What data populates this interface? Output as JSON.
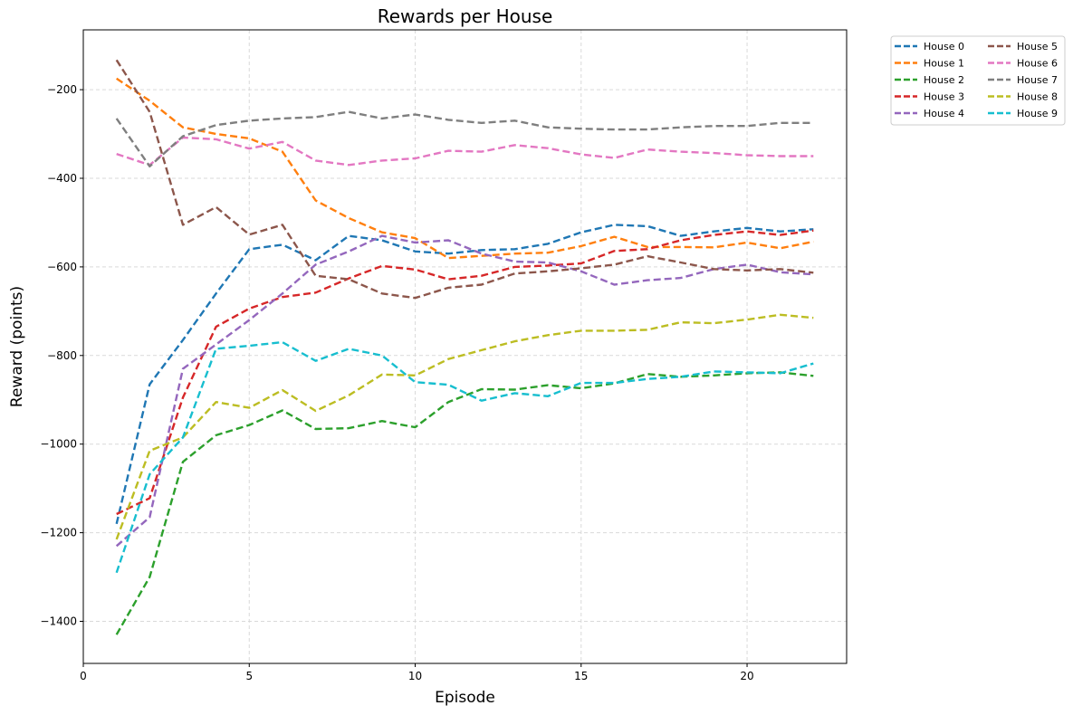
{
  "chart_data": {
    "type": "line",
    "title": "Rewards per House",
    "xlabel": "Episode",
    "ylabel": "Reward (points)",
    "xlim": [
      0,
      23
    ],
    "ylim": [
      -1495,
      -65
    ],
    "x_ticks": [
      0,
      5,
      10,
      15,
      20
    ],
    "y_ticks": [
      -1400,
      -1200,
      -1000,
      -800,
      -600,
      -400,
      -200
    ],
    "grid": true,
    "line_style": "dashed",
    "legend": {
      "position": "outside-top-right",
      "columns": 2
    },
    "x": [
      1,
      2,
      3,
      4,
      5,
      6,
      7,
      8,
      9,
      10,
      11,
      12,
      13,
      14,
      15,
      16,
      17,
      18,
      19,
      20,
      21,
      22
    ],
    "series": [
      {
        "name": "House 0",
        "color": "#1f77b4",
        "values": [
          -1180,
          -865,
          -765,
          -660,
          -560,
          -550,
          -585,
          -530,
          -540,
          -565,
          -570,
          -562,
          -560,
          -548,
          -522,
          -505,
          -508,
          -530,
          -520,
          -512,
          -520,
          -515
        ]
      },
      {
        "name": "House 1",
        "color": "#ff7f0e",
        "values": [
          -175,
          -225,
          -285,
          -300,
          -310,
          -340,
          -450,
          -490,
          -522,
          -535,
          -580,
          -575,
          -570,
          -568,
          -553,
          -532,
          -555,
          -555,
          -556,
          -545,
          -558,
          -543
        ]
      },
      {
        "name": "House 2",
        "color": "#2ca02c",
        "values": [
          -1430,
          -1300,
          -1040,
          -980,
          -957,
          -924,
          -966,
          -964,
          -948,
          -962,
          -905,
          -876,
          -877,
          -867,
          -874,
          -863,
          -842,
          -848,
          -845,
          -840,
          -838,
          -846
        ]
      },
      {
        "name": "House 3",
        "color": "#d62728",
        "values": [
          -1158,
          -1122,
          -895,
          -735,
          -694,
          -668,
          -658,
          -626,
          -598,
          -606,
          -628,
          -620,
          -600,
          -597,
          -592,
          -564,
          -560,
          -540,
          -528,
          -520,
          -528,
          -518
        ]
      },
      {
        "name": "House 4",
        "color": "#9467bd",
        "values": [
          -1230,
          -1165,
          -830,
          -775,
          -720,
          -660,
          -595,
          -565,
          -530,
          -545,
          -540,
          -570,
          -588,
          -590,
          -610,
          -640,
          -630,
          -625,
          -605,
          -595,
          -612,
          -617
        ]
      },
      {
        "name": "House 5",
        "color": "#8c564b",
        "values": [
          -133,
          -250,
          -505,
          -465,
          -527,
          -505,
          -620,
          -628,
          -660,
          -670,
          -647,
          -640,
          -615,
          -610,
          -603,
          -595,
          -576,
          -590,
          -605,
          -608,
          -605,
          -613
        ]
      },
      {
        "name": "House 6",
        "color": "#e377c2",
        "values": [
          -345,
          -370,
          -308,
          -312,
          -333,
          -318,
          -360,
          -370,
          -360,
          -355,
          -338,
          -340,
          -325,
          -332,
          -346,
          -354,
          -335,
          -340,
          -343,
          -348,
          -350,
          -350
        ]
      },
      {
        "name": "House 7",
        "color": "#7f7f7f",
        "values": [
          -265,
          -373,
          -305,
          -280,
          -270,
          -265,
          -262,
          -250,
          -265,
          -256,
          -268,
          -275,
          -270,
          -285,
          -288,
          -290,
          -290,
          -285,
          -282,
          -282,
          -275,
          -275
        ]
      },
      {
        "name": "House 8",
        "color": "#bcbd22",
        "values": [
          -1215,
          -1015,
          -985,
          -905,
          -918,
          -878,
          -925,
          -890,
          -843,
          -845,
          -808,
          -788,
          -768,
          -754,
          -744,
          -744,
          -742,
          -725,
          -727,
          -719,
          -708,
          -715
        ]
      },
      {
        "name": "House 9",
        "color": "#17becf",
        "values": [
          -1290,
          -1068,
          -985,
          -785,
          -778,
          -770,
          -812,
          -785,
          -800,
          -860,
          -866,
          -902,
          -885,
          -892,
          -862,
          -862,
          -853,
          -848,
          -836,
          -838,
          -840,
          -818
        ]
      }
    ]
  }
}
